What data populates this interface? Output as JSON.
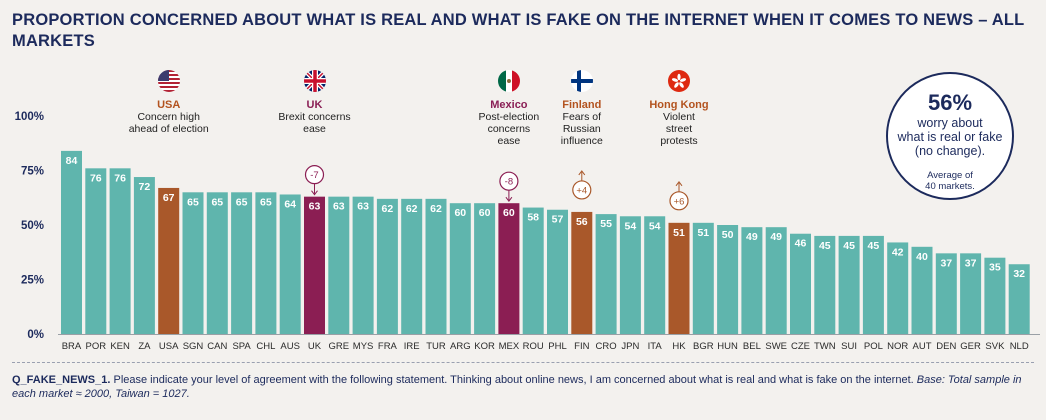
{
  "title": "PROPORTION CONCERNED ABOUT WHAT IS REAL AND WHAT IS FAKE ON THE INTERNET WHEN IT COMES TO NEWS – ALL MARKETS",
  "chart_data": {
    "type": "bar",
    "categories": [
      "BRA",
      "POR",
      "KEN",
      "ZA",
      "USA",
      "SGN",
      "CAN",
      "SPA",
      "CHL",
      "AUS",
      "UK",
      "GRE",
      "MYS",
      "FRA",
      "IRE",
      "TUR",
      "ARG",
      "KOR",
      "MEX",
      "ROU",
      "PHL",
      "FIN",
      "CRO",
      "JPN",
      "ITA",
      "HK",
      "BGR",
      "HUN",
      "BEL",
      "SWE",
      "CZE",
      "TWN",
      "SUI",
      "POL",
      "NOR",
      "AUT",
      "DEN",
      "GER",
      "SVK",
      "NLD"
    ],
    "values": [
      84,
      76,
      76,
      72,
      67,
      65,
      65,
      65,
      65,
      64,
      63,
      63,
      63,
      62,
      62,
      62,
      60,
      60,
      60,
      58,
      57,
      56,
      55,
      54,
      54,
      51,
      51,
      50,
      49,
      49,
      46,
      45,
      45,
      45,
      42,
      40,
      37,
      37,
      35,
      32
    ],
    "highlight": {
      "USA": "#a9582a",
      "FIN": "#a9582a",
      "HK": "#a9582a",
      "UK": "#8b1e53",
      "MEX": "#8b1e53"
    },
    "changes": [
      {
        "category": "UK",
        "text": "-7",
        "direction": "down",
        "color": "#8b1e53"
      },
      {
        "category": "MEX",
        "text": "-8",
        "direction": "down",
        "color": "#8b1e53"
      },
      {
        "category": "FIN",
        "text": "+4",
        "direction": "up",
        "color": "#a9582a"
      },
      {
        "category": "HK",
        "text": "+6",
        "direction": "up",
        "color": "#a9582a"
      }
    ],
    "ylim": [
      0,
      100
    ],
    "yticks": [
      "0%",
      "25%",
      "50%",
      "75%",
      "100%"
    ],
    "bar_color": "#5fb5ad",
    "grid": false
  },
  "annotations": [
    {
      "category": "USA",
      "name": "USA",
      "lines": [
        "Concern high",
        "ahead of election"
      ],
      "flag": "usa-flag-icon",
      "style": "orange"
    },
    {
      "category": "UK",
      "name": "UK",
      "lines": [
        "Brexit concerns",
        "ease"
      ],
      "flag": "uk-flag-icon",
      "style": "purple"
    },
    {
      "category": "MEX",
      "name": "Mexico",
      "lines": [
        "Post-election",
        "concerns",
        "ease"
      ],
      "flag": "mexico-flag-icon",
      "style": "purple"
    },
    {
      "category": "FIN",
      "name": "Finland",
      "lines": [
        "Fears of",
        "Russian",
        "influence"
      ],
      "flag": "finland-flag-icon",
      "style": "orange"
    },
    {
      "category": "HK",
      "name": "Hong Kong",
      "lines": [
        "Violent",
        "street",
        "protests"
      ],
      "flag": "hongkong-flag-icon",
      "style": "orange"
    }
  ],
  "callout": {
    "big": "56%",
    "line1": "worry about",
    "line2": "what is real or fake",
    "line3": "(no change).",
    "small1": "Average of",
    "small2": "40 markets."
  },
  "footnote": {
    "code": "Q_FAKE_NEWS_1.",
    "question": " Please indicate your level of agreement with the following statement. Thinking about online news, I am concerned about what is real and what is fake on the internet. ",
    "base": "Base: Total sample in each market ≈ 2000, Taiwan = 1027."
  }
}
